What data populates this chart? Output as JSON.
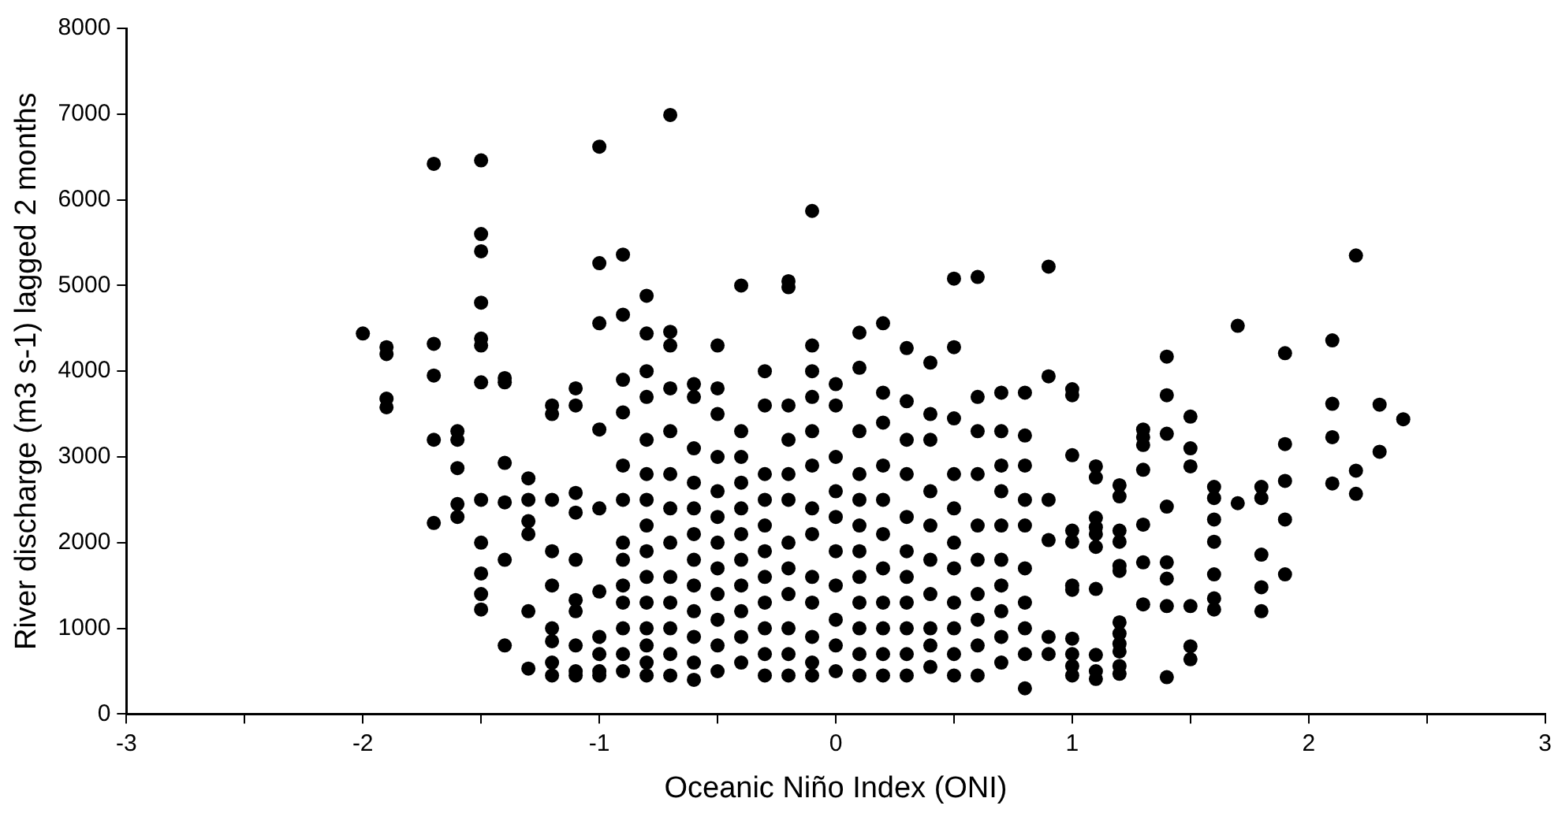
{
  "chart_data": {
    "type": "scatter",
    "xlabel": "Oceanic Niño Index (ONI)",
    "ylabel": "River discharge (m3 s-1) lagged 2 months",
    "xlim": [
      -3,
      3
    ],
    "xticks": [
      -3,
      {
        "value": -2.5,
        "label": null
      },
      -2,
      {
        "value": -1.5,
        "label": null
      },
      -1,
      {
        "value": -0.5,
        "label": null
      },
      0,
      {
        "value": 0.5,
        "label": null
      },
      1,
      {
        "value": 1.5,
        "label": null
      },
      2,
      {
        "value": 2.5,
        "label": null
      },
      3
    ],
    "ylim": [
      0,
      8000
    ],
    "yticks": [
      0,
      1000,
      2000,
      3000,
      4000,
      5000,
      6000,
      7000,
      8000
    ],
    "grid": false,
    "legend": false,
    "marker": "circle",
    "series": [
      {
        "color": "#000000",
        "x": [
          -2,
          -1.9,
          -1.9,
          -1.9,
          -1.9,
          -1.7,
          -1.7,
          -1.7,
          -1.7,
          -1.7,
          -1.6,
          -1.6,
          -1.6,
          -1.6,
          -1.6,
          -1.5,
          -1.5,
          -1.5,
          -1.5,
          -1.5,
          -1.5,
          -1.5,
          -1.5,
          -1.5,
          -1.5,
          -1.5,
          -1.5,
          -1.4,
          -1.4,
          -1.4,
          -1.4,
          -1.4,
          -1.4,
          -1.3,
          -1.3,
          -1.3,
          -1.3,
          -1.3,
          -1.3,
          -1.2,
          -1.2,
          -1.2,
          -1.2,
          -1.2,
          -1.2,
          -1.2,
          -1.2,
          -1.2,
          -1.1,
          -1.1,
          -1.1,
          -1.1,
          -1.1,
          -1.1,
          -1.1,
          -1.1,
          -1.1,
          -1.1,
          -1,
          -1,
          -1,
          -1,
          -1,
          -1,
          -1,
          -1,
          -1,
          -1,
          -0.9,
          -0.9,
          -0.9,
          -0.9,
          -0.9,
          -0.9,
          -0.9,
          -0.9,
          -0.9,
          -0.9,
          -0.9,
          -0.9,
          -0.9,
          -0.8,
          -0.8,
          -0.8,
          -0.8,
          -0.8,
          -0.8,
          -0.8,
          -0.8,
          -0.8,
          -0.8,
          -0.8,
          -0.8,
          -0.8,
          -0.8,
          -0.8,
          -0.7,
          -0.7,
          -0.7,
          -0.7,
          -0.7,
          -0.7,
          -0.7,
          -0.7,
          -0.7,
          -0.7,
          -0.7,
          -0.7,
          -0.7,
          -0.6,
          -0.6,
          -0.6,
          -0.6,
          -0.6,
          -0.6,
          -0.6,
          -0.6,
          -0.6,
          -0.6,
          -0.6,
          -0.6,
          -0.5,
          -0.5,
          -0.5,
          -0.5,
          -0.5,
          -0.5,
          -0.5,
          -0.5,
          -0.5,
          -0.5,
          -0.5,
          -0.5,
          -0.4,
          -0.4,
          -0.4,
          -0.4,
          -0.4,
          -0.4,
          -0.4,
          -0.4,
          -0.4,
          -0.4,
          -0.4,
          -0.3,
          -0.3,
          -0.3,
          -0.3,
          -0.3,
          -0.3,
          -0.3,
          -0.3,
          -0.3,
          -0.3,
          -0.3,
          -0.2,
          -0.2,
          -0.2,
          -0.2,
          -0.2,
          -0.2,
          -0.2,
          -0.2,
          -0.2,
          -0.2,
          -0.2,
          -0.2,
          -0.1,
          -0.1,
          -0.1,
          -0.1,
          -0.1,
          -0.1,
          -0.1,
          -0.1,
          -0.1,
          -0.1,
          -0.1,
          -0.1,
          -0.1,
          0,
          0,
          0,
          0,
          0,
          0,
          0,
          0,
          0,
          0,
          0.1,
          0.1,
          0.1,
          0.1,
          0.1,
          0.1,
          0.1,
          0.1,
          0.1,
          0.1,
          0.1,
          0.1,
          0.2,
          0.2,
          0.2,
          0.2,
          0.2,
          0.2,
          0.2,
          0.2,
          0.2,
          0.2,
          0.2,
          0.3,
          0.3,
          0.3,
          0.3,
          0.3,
          0.3,
          0.3,
          0.3,
          0.3,
          0.3,
          0.3,
          0.4,
          0.4,
          0.4,
          0.4,
          0.4,
          0.4,
          0.4,
          0.4,
          0.4,
          0.4,
          0.5,
          0.5,
          0.5,
          0.5,
          0.5,
          0.5,
          0.5,
          0.5,
          0.5,
          0.5,
          0.5,
          0.6,
          0.6,
          0.6,
          0.6,
          0.6,
          0.6,
          0.6,
          0.6,
          0.6,
          0.6,
          0.7,
          0.7,
          0.7,
          0.7,
          0.7,
          0.7,
          0.7,
          0.7,
          0.7,
          0.7,
          0.8,
          0.8,
          0.8,
          0.8,
          0.8,
          0.8,
          0.8,
          0.8,
          0.8,
          0.8,
          0.9,
          0.9,
          0.9,
          0.9,
          0.9,
          0.9,
          1,
          1,
          1,
          1,
          1,
          1,
          1,
          1,
          1,
          1,
          1,
          1.1,
          1.1,
          1.1,
          1.1,
          1.1,
          1.1,
          1.1,
          1.1,
          1.1,
          1.1,
          1.2,
          1.2,
          1.2,
          1.2,
          1.2,
          1.2,
          1.2,
          1.2,
          1.2,
          1.2,
          1.2,
          1.2,
          1.3,
          1.3,
          1.3,
          1.3,
          1.3,
          1.3,
          1.3,
          1.4,
          1.4,
          1.4,
          1.4,
          1.4,
          1.4,
          1.4,
          1.4,
          1.5,
          1.5,
          1.5,
          1.5,
          1.5,
          1.5,
          1.6,
          1.6,
          1.6,
          1.6,
          1.6,
          1.6,
          1.6,
          1.7,
          1.7,
          1.8,
          1.8,
          1.8,
          1.8,
          1.8,
          1.9,
          1.9,
          1.9,
          1.9,
          1.9,
          2.1,
          2.1,
          2.1,
          2.1,
          2.2,
          2.2,
          2.2,
          2.3,
          2.3,
          2.4
        ],
        "values": [
          4440,
          4280,
          4200,
          3680,
          3580,
          6420,
          4320,
          3950,
          3200,
          2230,
          3300,
          3200,
          2870,
          2450,
          2300,
          6460,
          5600,
          5400,
          4800,
          4380,
          4300,
          3870,
          2500,
          2000,
          1640,
          1400,
          1220,
          3920,
          3870,
          2930,
          2470,
          1800,
          800,
          2750,
          2500,
          2250,
          2100,
          1200,
          530,
          3600,
          3500,
          2500,
          1900,
          1500,
          1000,
          850,
          600,
          450,
          3800,
          3600,
          2580,
          2350,
          1800,
          1330,
          1200,
          800,
          500,
          450,
          6620,
          5260,
          4560,
          3320,
          2400,
          1430,
          900,
          700,
          500,
          450,
          5360,
          4660,
          3900,
          3520,
          2900,
          2500,
          2000,
          1800,
          1500,
          1300,
          1000,
          700,
          500,
          4880,
          4440,
          4000,
          3700,
          3200,
          2800,
          2500,
          2200,
          1900,
          1600,
          1300,
          1000,
          800,
          600,
          450,
          6990,
          4460,
          4300,
          3800,
          3300,
          2800,
          2400,
          2000,
          1600,
          1300,
          1000,
          700,
          450,
          3850,
          3700,
          3100,
          2700,
          2400,
          2100,
          1800,
          1500,
          1200,
          900,
          600,
          400,
          4300,
          3800,
          3500,
          3000,
          2600,
          2300,
          2000,
          1700,
          1400,
          1100,
          800,
          500,
          5000,
          3300,
          3000,
          2700,
          2400,
          2100,
          1800,
          1500,
          1200,
          900,
          600,
          4000,
          3600,
          2800,
          2500,
          2200,
          1900,
          1600,
          1300,
          1000,
          700,
          450,
          5050,
          4980,
          3600,
          3200,
          2800,
          2500,
          2000,
          1700,
          1400,
          1000,
          700,
          450,
          5870,
          4300,
          4000,
          3700,
          3300,
          2900,
          2400,
          2100,
          1600,
          1300,
          900,
          600,
          450,
          3850,
          3600,
          3000,
          2600,
          2300,
          1900,
          1500,
          1100,
          800,
          500,
          4450,
          4040,
          3300,
          2800,
          2500,
          2200,
          1900,
          1600,
          1300,
          1000,
          700,
          450,
          4560,
          3750,
          3400,
          2900,
          2500,
          2100,
          1700,
          1300,
          1000,
          700,
          450,
          4270,
          3650,
          3200,
          2800,
          2300,
          1900,
          1600,
          1300,
          1000,
          700,
          450,
          4100,
          3500,
          3200,
          2600,
          2200,
          1800,
          1400,
          1000,
          800,
          550,
          5080,
          4280,
          3450,
          2800,
          2400,
          2000,
          1700,
          1300,
          1000,
          700,
          450,
          5100,
          3700,
          3300,
          2800,
          2200,
          1800,
          1400,
          1100,
          800,
          450,
          3750,
          3300,
          2900,
          2600,
          2200,
          1800,
          1500,
          1200,
          900,
          600,
          3750,
          3250,
          2900,
          2500,
          2200,
          1700,
          1300,
          1000,
          700,
          300,
          5220,
          3940,
          2500,
          2030,
          900,
          700,
          3790,
          3720,
          3020,
          2140,
          2010,
          1500,
          1450,
          880,
          700,
          560,
          450,
          2890,
          2760,
          2290,
          2180,
          2100,
          1950,
          1460,
          690,
          500,
          410,
          2670,
          2540,
          2140,
          2010,
          1730,
          1670,
          1070,
          940,
          820,
          730,
          560,
          470,
          3320,
          3230,
          3140,
          2850,
          2210,
          1770,
          1280,
          4170,
          3720,
          3270,
          2420,
          1770,
          1580,
          1260,
          430,
          3470,
          3100,
          2890,
          1260,
          790,
          640,
          2650,
          2520,
          2270,
          2010,
          1630,
          1350,
          1220,
          4530,
          2460,
          2650,
          2520,
          1860,
          1480,
          1200,
          4210,
          3150,
          2720,
          2270,
          1630,
          4360,
          3620,
          3230,
          2690,
          5350,
          2840,
          2570,
          3610,
          3060,
          3440
        ]
      }
    ]
  }
}
